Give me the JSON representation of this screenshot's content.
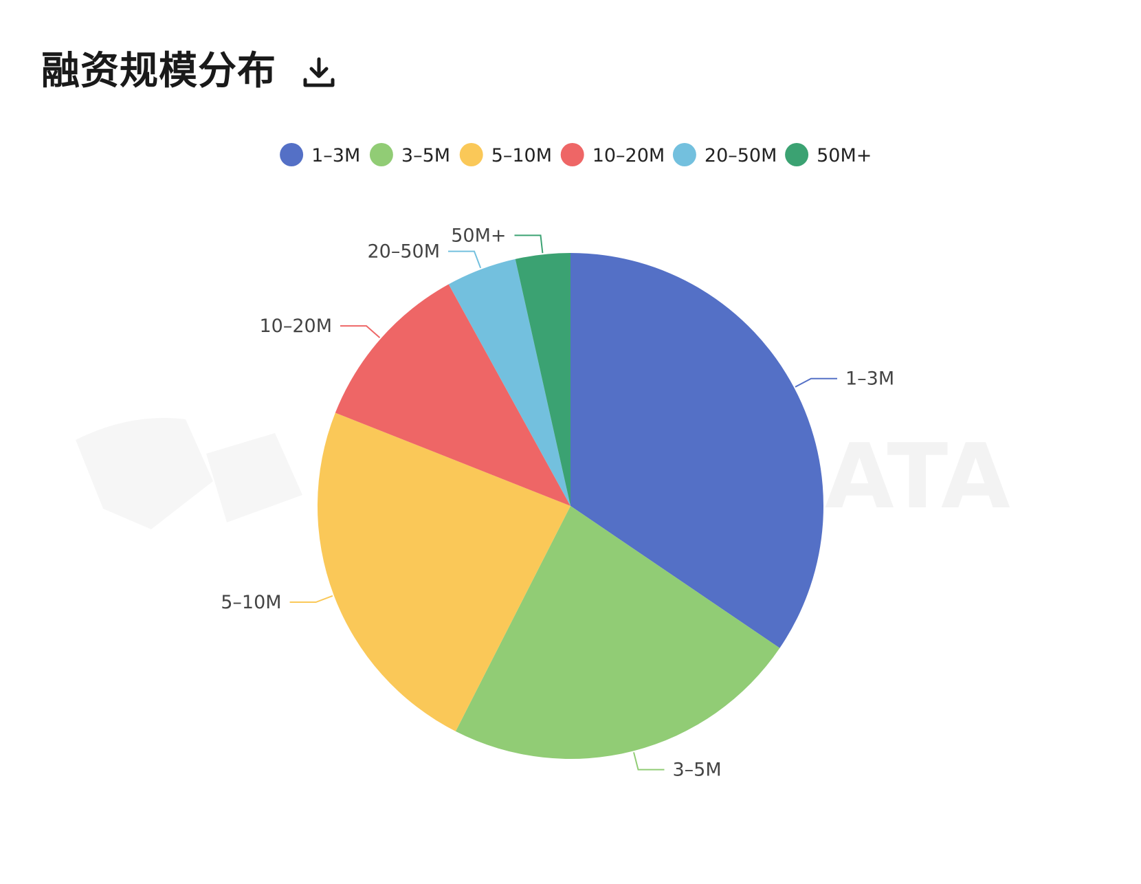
{
  "header": {
    "title": "融资规模分布",
    "download_icon": "download-icon"
  },
  "watermark": {
    "text": "ATA"
  },
  "chart_data": {
    "type": "pie",
    "title": "融资规模分布",
    "legend_position": "top-center",
    "categories": [
      "1–3M",
      "3–5M",
      "5–10M",
      "10–20M",
      "20–50M",
      "50M+"
    ],
    "values": [
      34.5,
      23.0,
      23.5,
      11.0,
      4.5,
      3.5
    ],
    "colors": [
      "#5470c6",
      "#91cc75",
      "#fac858",
      "#ee6666",
      "#73c0de",
      "#3ba272"
    ]
  }
}
